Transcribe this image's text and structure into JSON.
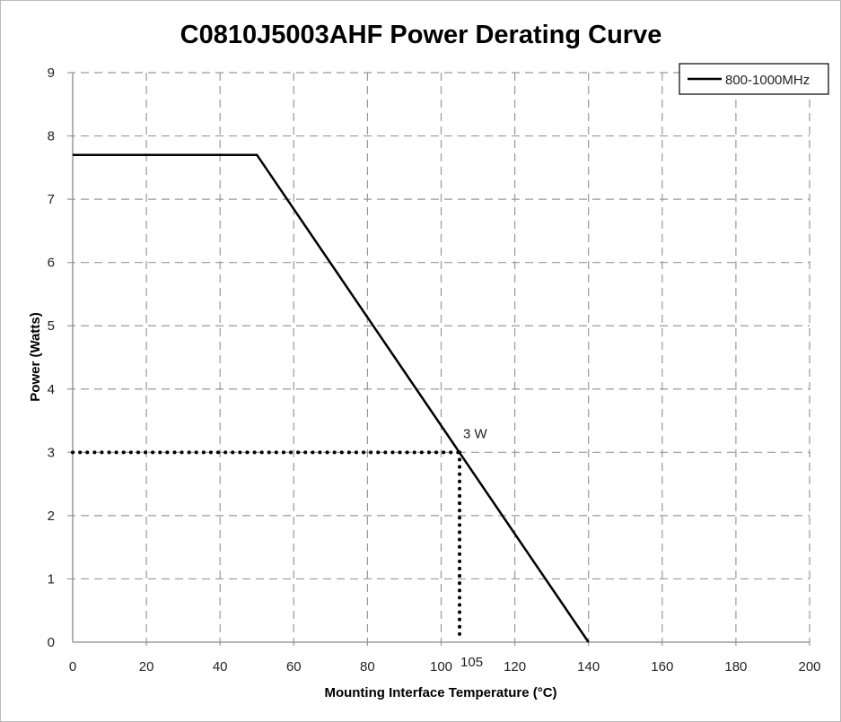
{
  "chart_data": {
    "type": "line",
    "title": "C0810J5003AHF Power Derating Curve",
    "xlabel": "Mounting Interface Temperature (°C)",
    "ylabel": "Power (Watts)",
    "xlim": [
      0,
      200
    ],
    "ylim": [
      0,
      9
    ],
    "xticks": [
      0,
      20,
      40,
      60,
      80,
      100,
      120,
      140,
      160,
      180,
      200
    ],
    "yticks": [
      0,
      1,
      2,
      3,
      4,
      5,
      6,
      7,
      8,
      9
    ],
    "grid": true,
    "grid_style": "dashed",
    "legend_position": "top-right",
    "series": [
      {
        "name": "800-1000MHz",
        "color": "#000000",
        "x": [
          0,
          50,
          140
        ],
        "y": [
          7.7,
          7.7,
          0
        ]
      }
    ],
    "reference_lines": {
      "x": 105,
      "y": 3,
      "style": "dotted"
    },
    "annotations": [
      {
        "text": "3 W",
        "x": 105,
        "y": 3
      },
      {
        "text": "105",
        "x": 105,
        "y": 0
      }
    ]
  }
}
